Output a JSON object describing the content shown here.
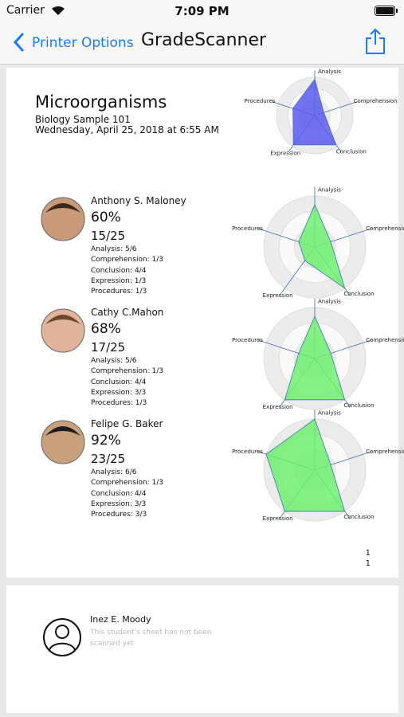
{
  "status_bar": {
    "carrier": "Carrier",
    "time": "7:09 PM"
  },
  "nav_bar": {
    "back": "Printer Options",
    "title": "GradeScanner"
  },
  "report": {
    "title": "Microorganisms",
    "subtitle": "Biology Sample 101",
    "date": "Wednesday, April 25, 2018 at 6:55 AM",
    "radar_axes": [
      "Analysis",
      "Comprehension",
      "Conclusion",
      "Expression",
      "Procedures"
    ],
    "rlim": [
      0,
      1
    ],
    "radar": {
      "values": [
        0.95,
        0.25,
        0.95,
        0.95,
        0.6
      ],
      "color": "#5a5af0"
    },
    "students": [
      {
        "name": "Anthony S. Maloney",
        "percent": "60%",
        "score": "15/25",
        "details": [
          "Analysis: 5/6",
          "Comprehension: 1/3",
          "Conclusion: 4/4",
          "Expression: 1/3",
          "Procedures: 1/3"
        ],
        "radar": {
          "values": [
            0.83,
            0.33,
            1,
            0.33,
            0.33
          ],
          "color": "#6ef06e"
        }
      },
      {
        "name": "Cathy C.Mahon",
        "percent": "68%",
        "score": "17/25",
        "details": [
          "Analysis: 5/6",
          "Comprehension: 1/3",
          "Conclusion: 4/4",
          "Expression: 3/3",
          "Procedures: 1/3"
        ],
        "radar": {
          "values": [
            0.83,
            0.33,
            1,
            1,
            0.33
          ],
          "color": "#6ef06e"
        }
      },
      {
        "name": "Felipe G. Baker",
        "percent": "92%",
        "score": "23/25",
        "details": [
          "Analysis: 6/6",
          "Comprehension: 1/3",
          "Conclusion: 4/4",
          "Expression: 3/3",
          "Procedures: 3/3"
        ],
        "radar": {
          "values": [
            1,
            0.33,
            1,
            1,
            1
          ],
          "color": "#6ef06e"
        }
      }
    ],
    "page_numbers": [
      "1",
      "1"
    ]
  },
  "unscanned": {
    "name": "Inez E. Moody",
    "message": "This student's sheet has not been scanned yet"
  }
}
